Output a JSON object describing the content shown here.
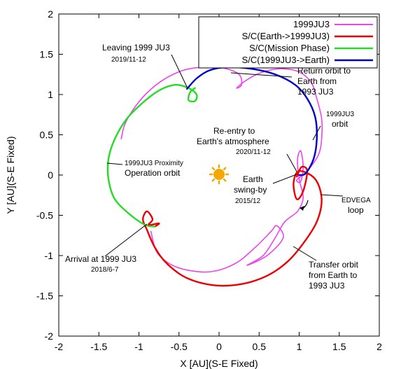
{
  "chart_data": {
    "type": "line",
    "xlabel": "X [AU](S-E Fixed)",
    "ylabel": "Y [AU](S-E Fixed)",
    "xlim": [
      -2,
      2
    ],
    "ylim": [
      -2,
      2
    ],
    "xticks": [
      "-2",
      "-1.5",
      "-1",
      "-0.5",
      "0",
      "0.5",
      "1",
      "1.5",
      "2"
    ],
    "yticks": [
      "2",
      "1.5",
      "1",
      "0.5",
      "0",
      "-0.5",
      "-1",
      "-1.5",
      "-2"
    ],
    "legend_position": "top-right",
    "series": [
      {
        "name": "1999JU3",
        "color": "#ee44ee",
        "points": [
          [
            -1.22,
            0.45
          ],
          [
            -1.18,
            0.62
          ],
          [
            -1.08,
            0.8
          ],
          [
            -0.92,
            1.0
          ],
          [
            -0.7,
            1.18
          ],
          [
            -0.45,
            1.3
          ],
          [
            -0.2,
            1.34
          ],
          [
            0.05,
            1.33
          ],
          [
            0.25,
            1.25
          ],
          [
            0.28,
            1.12
          ],
          [
            0.22,
            1.08
          ],
          [
            0.3,
            1.15
          ],
          [
            0.45,
            1.24
          ],
          [
            0.62,
            1.3
          ],
          [
            0.8,
            1.32
          ],
          [
            1.0,
            1.28
          ],
          [
            1.15,
            1.15
          ],
          [
            1.22,
            0.95
          ],
          [
            1.28,
            0.7
          ],
          [
            1.28,
            0.45
          ],
          [
            1.24,
            0.25
          ],
          [
            1.1,
            0.05
          ],
          [
            0.97,
            -0.06
          ],
          [
            1.02,
            -0.08
          ],
          [
            1.05,
            0.1
          ],
          [
            1.02,
            0.3
          ],
          [
            0.98,
            0.2
          ],
          [
            1.0,
            -0.05
          ],
          [
            1.05,
            -0.28
          ],
          [
            0.98,
            -0.45
          ],
          [
            0.82,
            -0.58
          ],
          [
            0.7,
            -0.78
          ],
          [
            0.55,
            -1.0
          ],
          [
            0.35,
            -1.12
          ],
          [
            0.6,
            -1.0
          ],
          [
            0.8,
            -0.78
          ],
          [
            0.72,
            -0.63
          ],
          [
            0.65,
            -0.7
          ],
          [
            0.45,
            -0.9
          ],
          [
            0.2,
            -1.1
          ],
          [
            -0.1,
            -1.2
          ],
          [
            -0.4,
            -1.18
          ],
          [
            -0.62,
            -1.1
          ],
          [
            -0.78,
            -0.95
          ],
          [
            -0.85,
            -0.7
          ]
        ]
      },
      {
        "name": "S/C(Earth->1999JU3)",
        "color": "#ee0000",
        "points": [
          [
            0.97,
            -0.02
          ],
          [
            1.03,
            0.1
          ],
          [
            1.1,
            0.05
          ],
          [
            1.05,
            -0.2
          ],
          [
            0.97,
            -0.3
          ],
          [
            0.93,
            -0.1
          ],
          [
            1.0,
            0.05
          ],
          [
            1.2,
            -0.05
          ],
          [
            1.28,
            -0.3
          ],
          [
            1.22,
            -0.58
          ],
          [
            1.05,
            -0.85
          ],
          [
            0.85,
            -1.08
          ],
          [
            0.6,
            -1.25
          ],
          [
            0.3,
            -1.35
          ],
          [
            -0.05,
            -1.37
          ],
          [
            -0.4,
            -1.28
          ],
          [
            -0.65,
            -1.1
          ],
          [
            -0.8,
            -0.9
          ],
          [
            -0.9,
            -0.68
          ],
          [
            -0.95,
            -0.55
          ],
          [
            -0.9,
            -0.45
          ],
          [
            -0.83,
            -0.55
          ],
          [
            -0.88,
            -0.62
          ],
          [
            -0.75,
            -0.6
          ],
          [
            -0.8,
            -0.64
          ]
        ]
      },
      {
        "name": "S/C(Mission Phase)",
        "color": "#22dd22",
        "points": [
          [
            -0.8,
            -0.64
          ],
          [
            -0.92,
            -0.62
          ],
          [
            -1.1,
            -0.5
          ],
          [
            -1.3,
            -0.3
          ],
          [
            -1.38,
            -0.05
          ],
          [
            -1.38,
            0.2
          ],
          [
            -1.3,
            0.45
          ],
          [
            -1.15,
            0.7
          ],
          [
            -0.95,
            0.9
          ],
          [
            -0.75,
            1.05
          ],
          [
            -0.55,
            1.12
          ],
          [
            -0.38,
            1.08
          ],
          [
            -0.28,
            1.0
          ],
          [
            -0.3,
            0.92
          ],
          [
            -0.38,
            0.93
          ],
          [
            -0.36,
            1.03
          ],
          [
            -0.3,
            1.08
          ]
        ]
      },
      {
        "name": "S/C(1999JU3->Earth)",
        "color": "#0000cc",
        "points": [
          [
            -0.4,
            1.07
          ],
          [
            -0.28,
            1.2
          ],
          [
            -0.12,
            1.3
          ],
          [
            0.1,
            1.34
          ],
          [
            0.4,
            1.32
          ],
          [
            0.7,
            1.25
          ],
          [
            0.95,
            1.12
          ],
          [
            1.1,
            0.95
          ],
          [
            1.2,
            0.72
          ],
          [
            1.22,
            0.45
          ],
          [
            1.18,
            0.2
          ],
          [
            1.08,
            0.02
          ],
          [
            1.0,
            0.0
          ]
        ]
      }
    ],
    "annotations": [
      {
        "id": "leaving",
        "lines": [
          "Leaving 1999 JU3"
        ],
        "date": "2019/11-12"
      },
      {
        "id": "return",
        "lines": [
          "Return orbit to",
          "Earth from",
          "1993 JU3"
        ]
      },
      {
        "id": "ju3orbit",
        "lines": [
          "1999JU3",
          "orbit"
        ]
      },
      {
        "id": "reentry",
        "lines": [
          "Re-entry to",
          "Earth's atmosphere"
        ],
        "date": "2020/11-12"
      },
      {
        "id": "proximity",
        "lines": [
          "1999JU3 Proximity",
          "Operation orbit"
        ]
      },
      {
        "id": "swingby",
        "lines": [
          "Earth",
          "swing-by"
        ],
        "date": "2015/12"
      },
      {
        "id": "edvega",
        "lines": [
          "EDVEGA",
          "loop"
        ]
      },
      {
        "id": "arrival",
        "lines": [
          "Arrival at 1999 JU3"
        ],
        "date": "2018/6-7"
      },
      {
        "id": "transfer",
        "lines": [
          "Transfer orbit",
          "from Earth to",
          "1993 JU3"
        ]
      }
    ]
  }
}
